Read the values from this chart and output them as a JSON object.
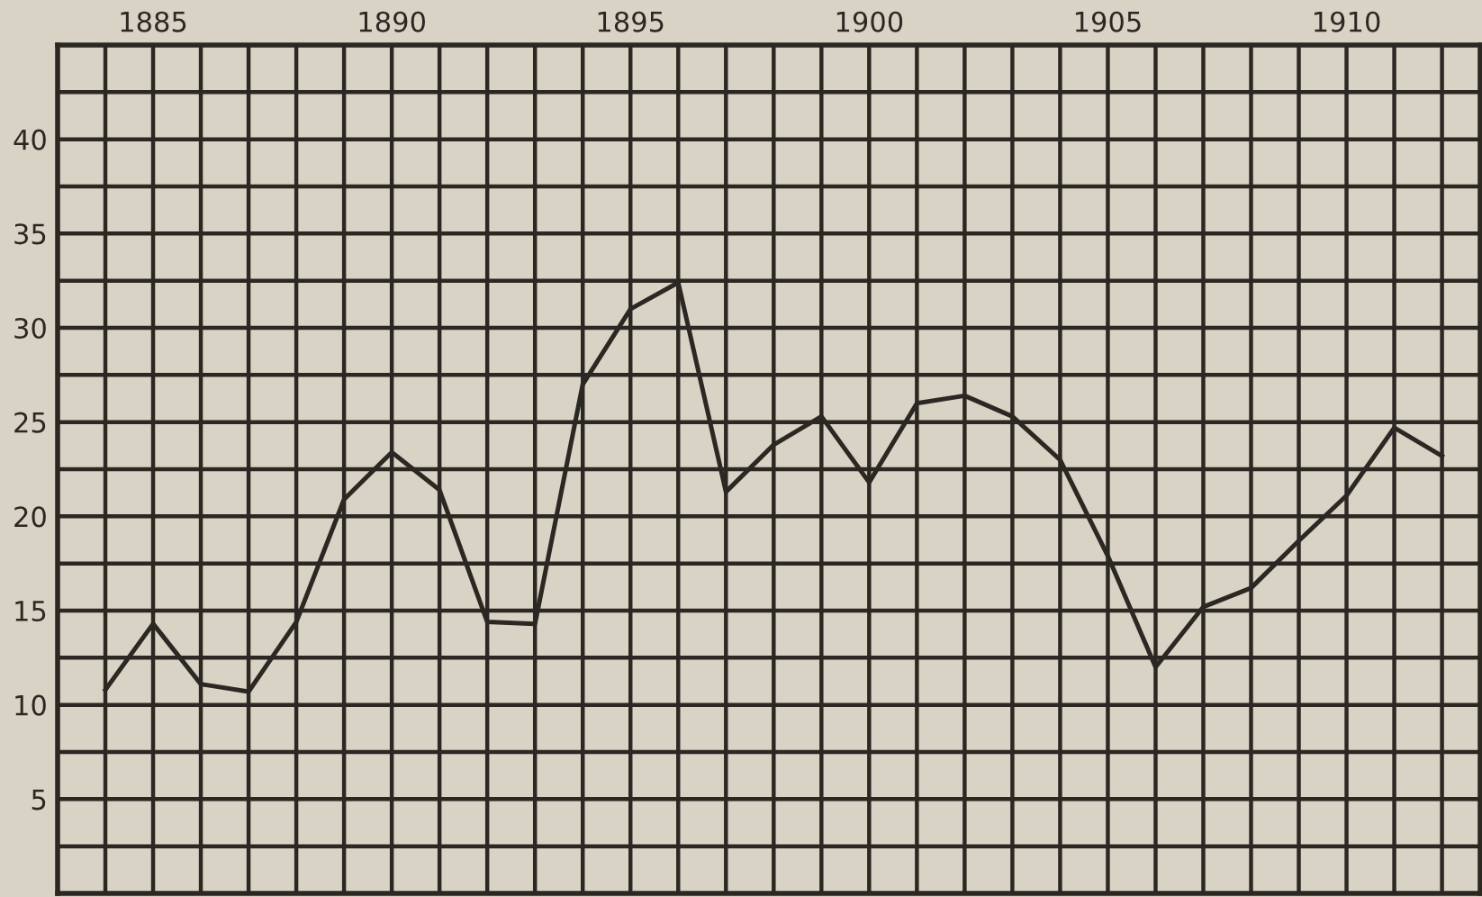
{
  "chart_data": {
    "type": "line",
    "x": [
      1884,
      1885,
      1886,
      1887,
      1888,
      1889,
      1890,
      1891,
      1892,
      1893,
      1894,
      1895,
      1896,
      1897,
      1898,
      1899,
      1900,
      1901,
      1902,
      1903,
      1904,
      1905,
      1906,
      1907,
      1908,
      1909,
      1910,
      1911,
      1912
    ],
    "series": [
      {
        "color": "#2b2722",
        "values": [
          10.8,
          14.3,
          11.1,
          10.7,
          14.4,
          20.9,
          23.4,
          21.4,
          14.4,
          14.3,
          27.0,
          31.0,
          32.4,
          21.3,
          23.8,
          25.3,
          21.8,
          26.0,
          26.4,
          25.3,
          23.0,
          17.9,
          12.0,
          15.2,
          16.2,
          18.7,
          21.1,
          24.7,
          23.2
        ]
      }
    ],
    "xlim": [
      1883,
      1912.8
    ],
    "xticks": [
      {
        "value": 1884,
        "label": null
      },
      1885,
      {
        "value": 1886,
        "label": null
      },
      {
        "value": 1887,
        "label": null
      },
      {
        "value": 1888,
        "label": null
      },
      {
        "value": 1889,
        "label": null
      },
      1890,
      {
        "value": 1891,
        "label": null
      },
      {
        "value": 1892,
        "label": null
      },
      {
        "value": 1893,
        "label": null
      },
      {
        "value": 1894,
        "label": null
      },
      1895,
      {
        "value": 1896,
        "label": null
      },
      {
        "value": 1897,
        "label": null
      },
      {
        "value": 1898,
        "label": null
      },
      {
        "value": 1899,
        "label": null
      },
      1900,
      {
        "value": 1901,
        "label": null
      },
      {
        "value": 1902,
        "label": null
      },
      {
        "value": 1903,
        "label": null
      },
      {
        "value": 1904,
        "label": null
      },
      1905,
      {
        "value": 1906,
        "label": null
      },
      {
        "value": 1907,
        "label": null
      },
      {
        "value": 1908,
        "label": null
      },
      {
        "value": 1909,
        "label": null
      },
      1910,
      {
        "value": 1911,
        "label": null
      },
      {
        "value": 1912,
        "label": null
      }
    ],
    "ylim": [
      0,
      45
    ],
    "yticks": [
      {
        "value": 2.5,
        "label": null
      },
      5,
      {
        "value": 7.5,
        "label": null
      },
      10,
      {
        "value": 12.5,
        "label": null
      },
      15,
      {
        "value": 17.5,
        "label": null
      },
      20,
      {
        "value": 22.5,
        "label": null
      },
      25,
      {
        "value": 27.5,
        "label": null
      },
      30,
      {
        "value": 32.5,
        "label": null
      },
      35,
      {
        "value": 37.5,
        "label": null
      },
      40,
      {
        "value": 42.5,
        "label": null
      }
    ],
    "grid": true,
    "marker": "none",
    "line_style": "solid"
  }
}
